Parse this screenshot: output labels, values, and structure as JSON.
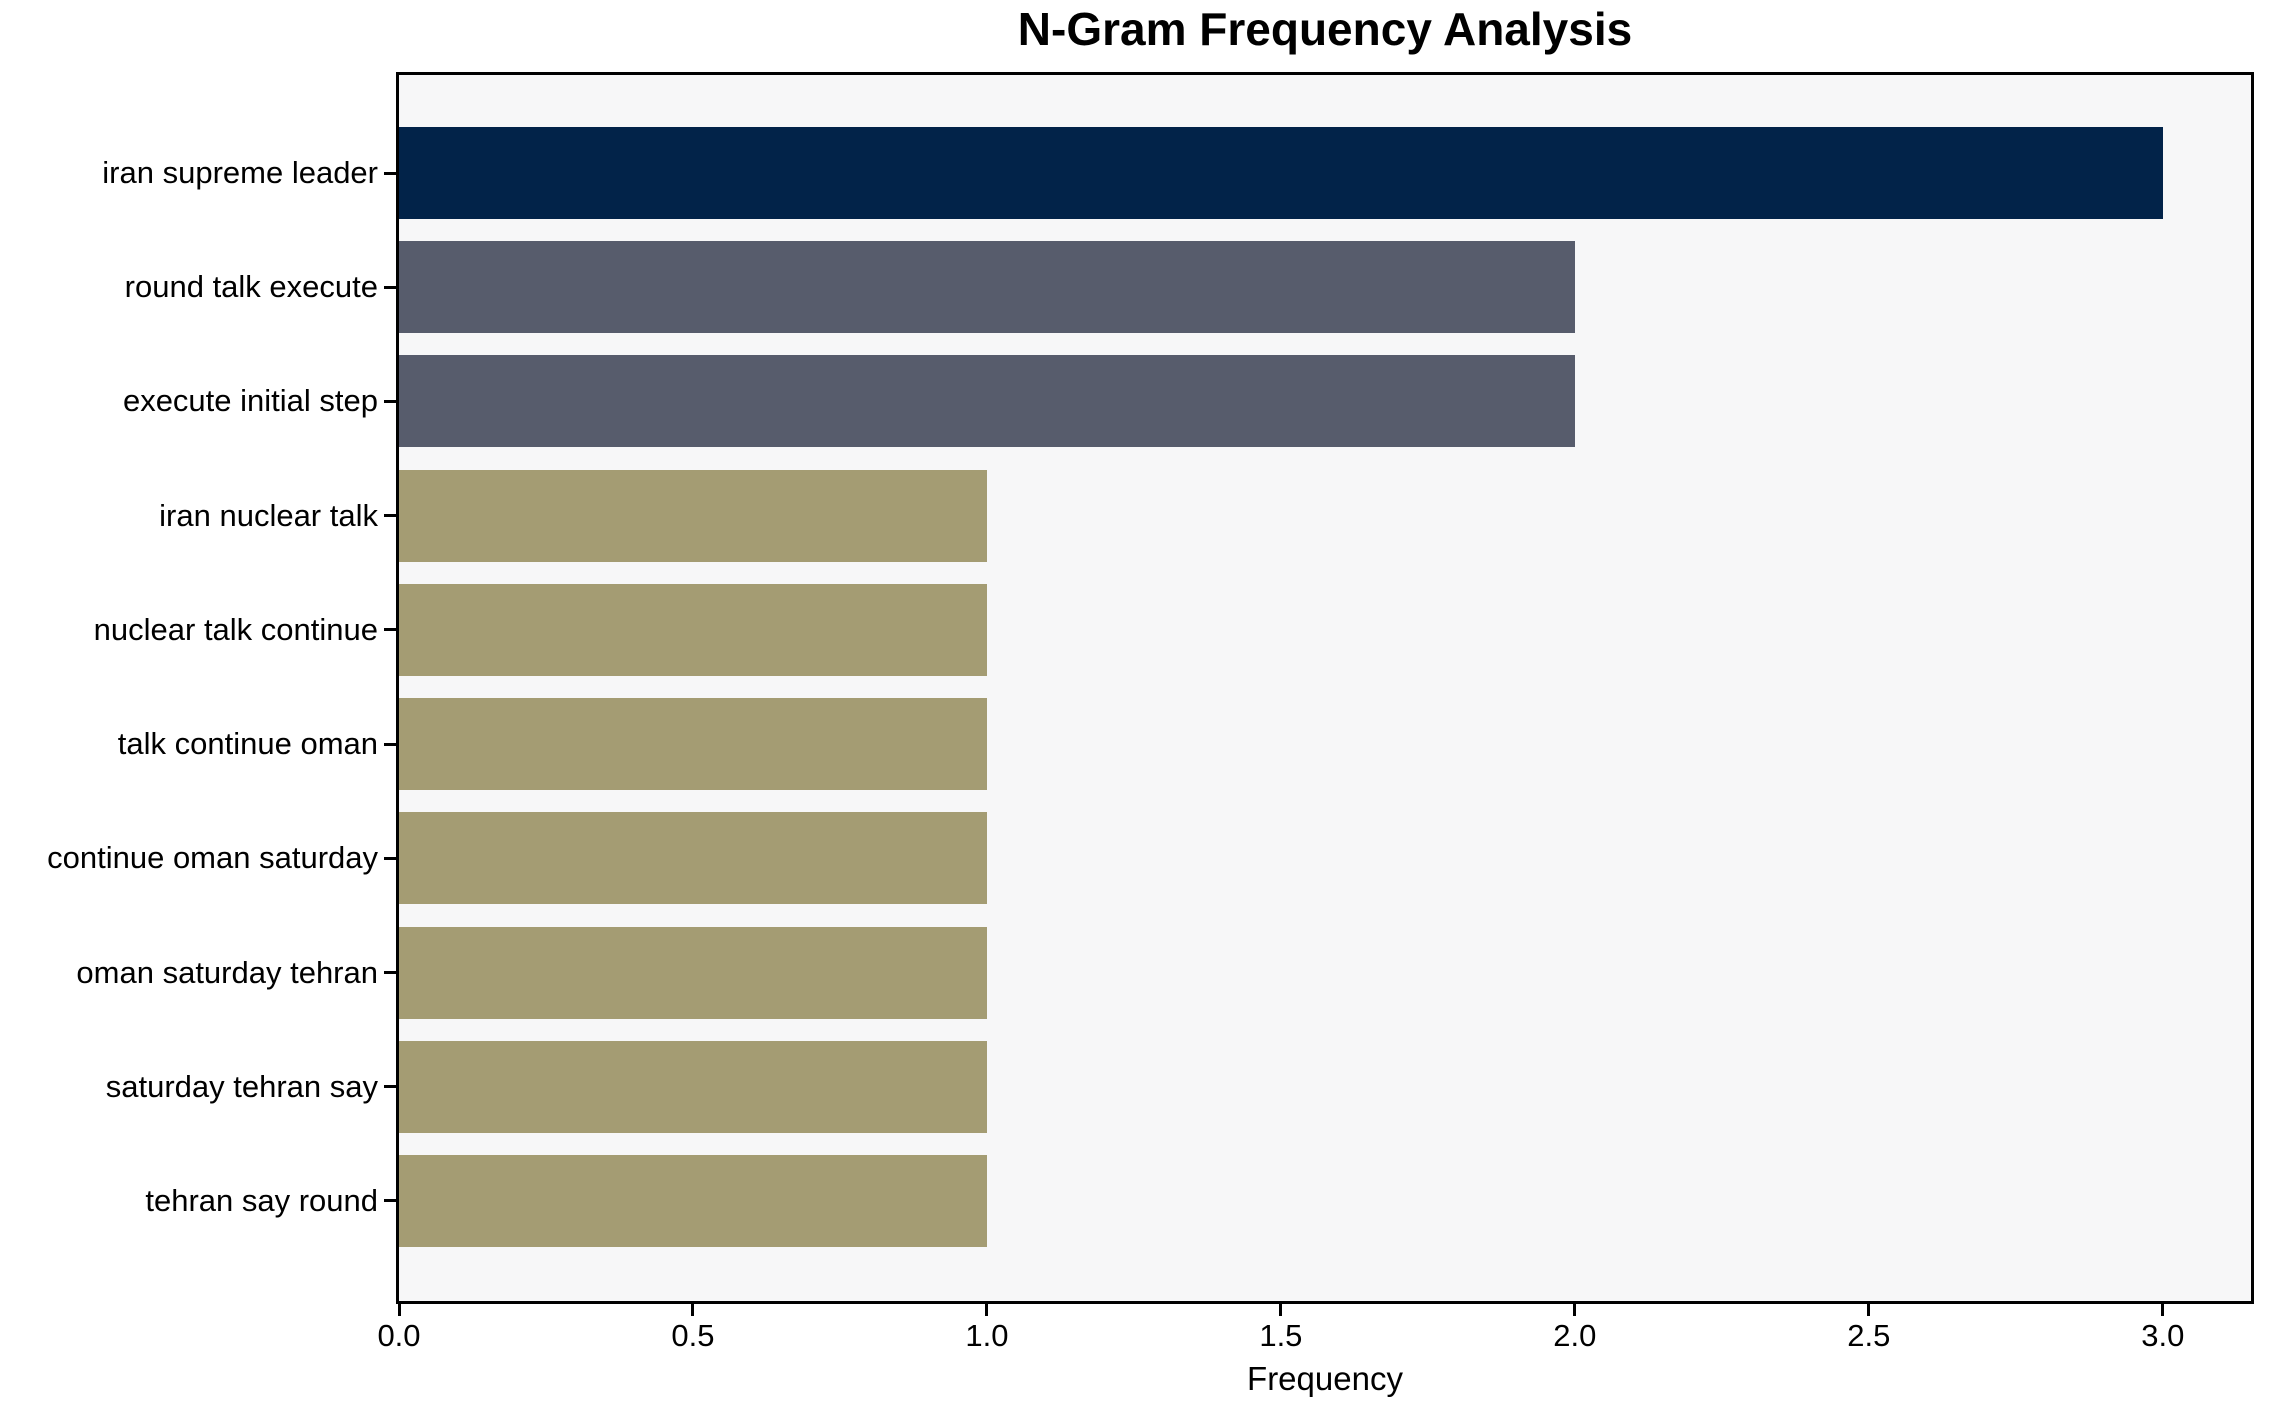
{
  "chart_data": {
    "type": "bar",
    "orientation": "horizontal",
    "title": "N-Gram Frequency Analysis",
    "xlabel": "Frequency",
    "ylabel": "",
    "categories": [
      "iran supreme leader",
      "round talk execute",
      "execute initial step",
      "iran nuclear talk",
      "nuclear talk continue",
      "talk continue oman",
      "continue oman saturday",
      "oman saturday tehran",
      "saturday tehran say",
      "tehran say round"
    ],
    "values": [
      3,
      2,
      2,
      1,
      1,
      1,
      1,
      1,
      1,
      1
    ],
    "bar_colors": [
      "#022349",
      "#575c6c",
      "#575c6c",
      "#a49c73",
      "#a49c73",
      "#a49c73",
      "#a49c73",
      "#a49c73",
      "#a49c73",
      "#a49c73"
    ],
    "xlim": [
      0,
      3.15
    ],
    "xticks": [
      0.0,
      0.5,
      1.0,
      1.5,
      2.0,
      2.5,
      3.0
    ],
    "xtick_labels": [
      "0.0",
      "0.5",
      "1.0",
      "1.5",
      "2.0",
      "2.5",
      "3.0"
    ],
    "grid": false,
    "legend": false,
    "plot_background": "#f7f7f8",
    "figure_background": "#ffffff",
    "spine_color": "#000000"
  }
}
